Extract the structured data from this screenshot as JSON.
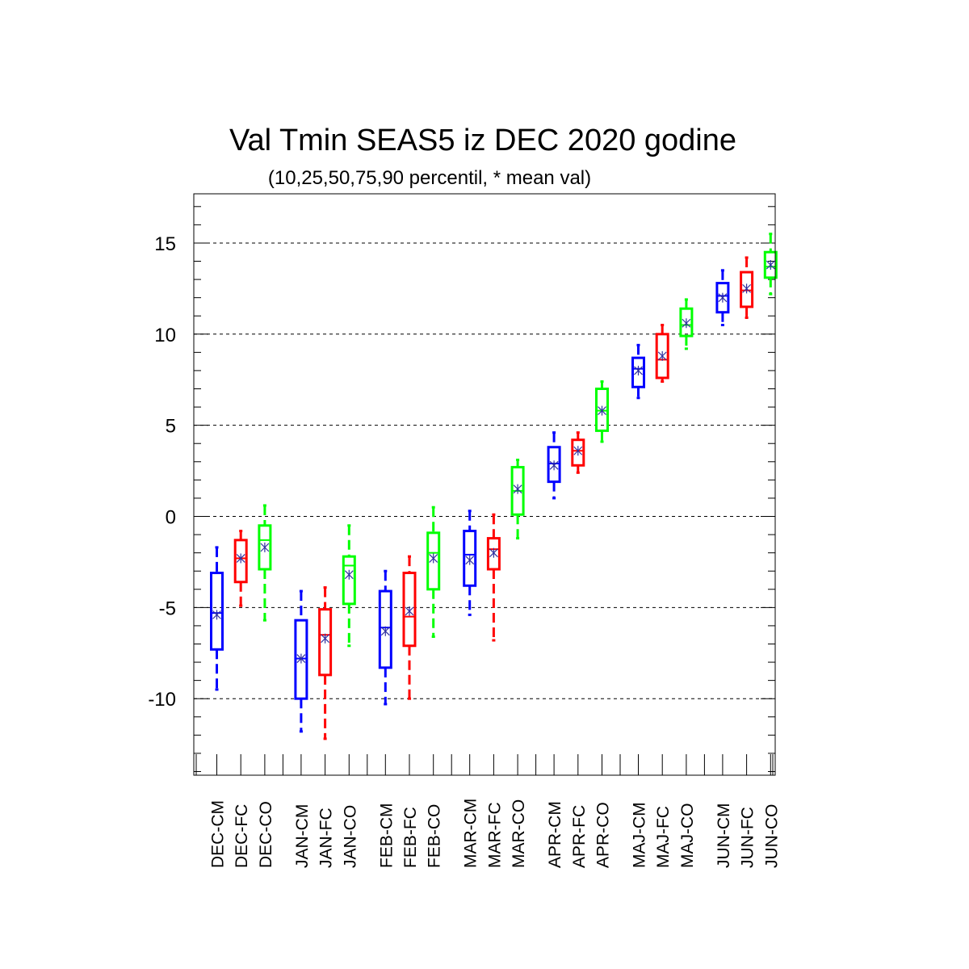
{
  "chart_data": {
    "type": "box",
    "title": "Val Tmin SEAS5 iz DEC 2020 godine",
    "subtitle": "(10,25,50,75,90 percentil, * mean val)",
    "ylim": [
      -14.2,
      17.7
    ],
    "yticks": [
      -10,
      -5,
      0,
      5,
      10,
      15
    ],
    "ytick_labels": [
      "-10",
      "-5",
      "0",
      "5",
      "10",
      "15"
    ],
    "grid": "horizontal dashed at major ticks",
    "legend": "none",
    "colors": {
      "CM": "#0000ff",
      "FC": "#ff0000",
      "CO": "#00ff00"
    },
    "boxes": [
      {
        "label": "DEC-CM",
        "group": "CM",
        "p10": -9.5,
        "p25": -7.3,
        "p50": -5.3,
        "p75": -3.1,
        "p90": -1.7,
        "mean": -5.4
      },
      {
        "label": "DEC-FC",
        "group": "FC",
        "p10": -4.9,
        "p25": -3.6,
        "p50": -2.3,
        "p75": -1.3,
        "p90": -0.8,
        "mean": -2.3
      },
      {
        "label": "DEC-CO",
        "group": "CO",
        "p10": -5.7,
        "p25": -2.9,
        "p50": -1.3,
        "p75": -0.5,
        "p90": 0.6,
        "mean": -1.7
      },
      {
        "label": "JAN-CM",
        "group": "CM",
        "p10": -11.8,
        "p25": -10.0,
        "p50": -7.8,
        "p75": -5.7,
        "p90": -4.1,
        "mean": -7.8
      },
      {
        "label": "JAN-FC",
        "group": "FC",
        "p10": -12.2,
        "p25": -8.7,
        "p50": -6.5,
        "p75": -5.1,
        "p90": -3.9,
        "mean": -6.7
      },
      {
        "label": "JAN-CO",
        "group": "CO",
        "p10": -7.1,
        "p25": -4.8,
        "p50": -2.7,
        "p75": -2.2,
        "p90": -0.5,
        "mean": -3.2
      },
      {
        "label": "FEB-CM",
        "group": "CM",
        "p10": -10.3,
        "p25": -8.3,
        "p50": -6.1,
        "p75": -4.1,
        "p90": -3.0,
        "mean": -6.3
      },
      {
        "label": "FEB-FC",
        "group": "FC",
        "p10": -10.0,
        "p25": -7.1,
        "p50": -5.5,
        "p75": -3.1,
        "p90": -2.2,
        "mean": -5.2
      },
      {
        "label": "FEB-CO",
        "group": "CO",
        "p10": -6.6,
        "p25": -4.0,
        "p50": -2.0,
        "p75": -0.9,
        "p90": 0.5,
        "mean": -2.3
      },
      {
        "label": "MAR-CM",
        "group": "CM",
        "p10": -5.4,
        "p25": -3.8,
        "p50": -2.1,
        "p75": -0.8,
        "p90": 0.3,
        "mean": -2.4
      },
      {
        "label": "MAR-FC",
        "group": "FC",
        "p10": -6.8,
        "p25": -2.9,
        "p50": -1.8,
        "p75": -1.2,
        "p90": 0.1,
        "mean": -2.0
      },
      {
        "label": "MAR-CO",
        "group": "CO",
        "p10": -1.2,
        "p25": 0.1,
        "p50": 1.4,
        "p75": 2.7,
        "p90": 3.1,
        "mean": 1.5
      },
      {
        "label": "APR-CM",
        "group": "CM",
        "p10": 1.0,
        "p25": 1.9,
        "p50": 2.9,
        "p75": 3.8,
        "p90": 4.6,
        "mean": 2.8
      },
      {
        "label": "APR-FC",
        "group": "FC",
        "p10": 2.4,
        "p25": 2.8,
        "p50": 3.6,
        "p75": 4.2,
        "p90": 4.6,
        "mean": 3.6
      },
      {
        "label": "APR-CO",
        "group": "CO",
        "p10": 4.1,
        "p25": 4.7,
        "p50": 5.8,
        "p75": 7.0,
        "p90": 7.4,
        "mean": 5.8
      },
      {
        "label": "MAJ-CM",
        "group": "CM",
        "p10": 6.5,
        "p25": 7.1,
        "p50": 8.1,
        "p75": 8.7,
        "p90": 9.4,
        "mean": 8.0
      },
      {
        "label": "MAJ-FC",
        "group": "FC",
        "p10": 7.4,
        "p25": 7.6,
        "p50": 8.6,
        "p75": 10.0,
        "p90": 10.5,
        "mean": 8.8
      },
      {
        "label": "MAJ-CO",
        "group": "CO",
        "p10": 9.2,
        "p25": 9.9,
        "p50": 10.5,
        "p75": 11.4,
        "p90": 11.9,
        "mean": 10.6
      },
      {
        "label": "JUN-CM",
        "group": "CM",
        "p10": 10.5,
        "p25": 11.2,
        "p50": 12.1,
        "p75": 12.8,
        "p90": 13.5,
        "mean": 12.0
      },
      {
        "label": "JUN-FC",
        "group": "FC",
        "p10": 10.9,
        "p25": 11.5,
        "p50": 12.4,
        "p75": 13.4,
        "p90": 14.2,
        "mean": 12.5
      },
      {
        "label": "JUN-CO",
        "group": "CO",
        "p10": 12.2,
        "p25": 13.1,
        "p50": 13.7,
        "p75": 14.5,
        "p90": 15.5,
        "mean": 13.8
      }
    ]
  }
}
